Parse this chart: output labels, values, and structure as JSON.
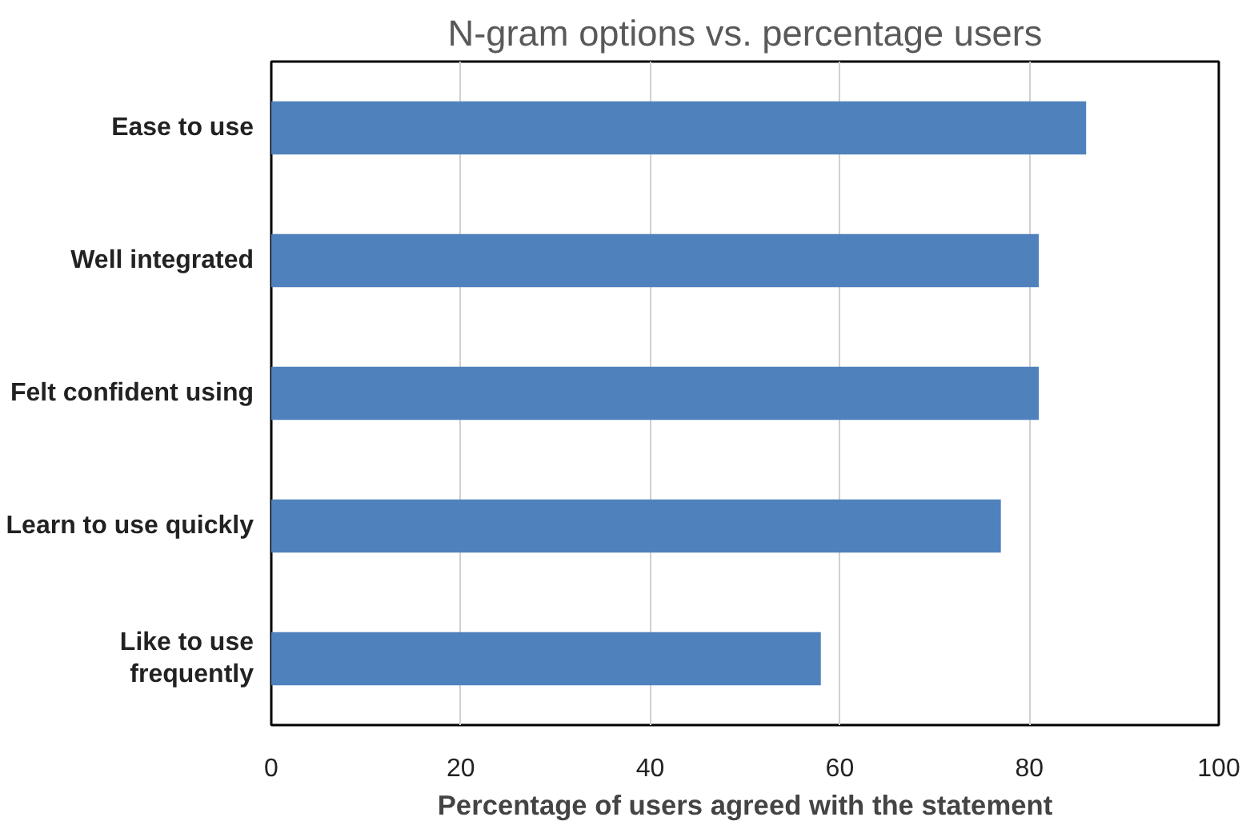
{
  "chart_data": {
    "type": "bar",
    "orientation": "horizontal",
    "title": "N-gram options vs. percentage users",
    "xlabel": "Percentage of users agreed with the statement",
    "categories": [
      "Ease to use",
      "Well integrated",
      "Felt confident using",
      "Learn to use quickly",
      "Like to use frequently"
    ],
    "values": [
      86,
      81,
      81,
      77,
      58
    ],
    "color": "#4f81bd",
    "xlim": [
      0,
      100
    ],
    "xticks": [
      0,
      20,
      40,
      60,
      80,
      100
    ],
    "grid": "x"
  }
}
